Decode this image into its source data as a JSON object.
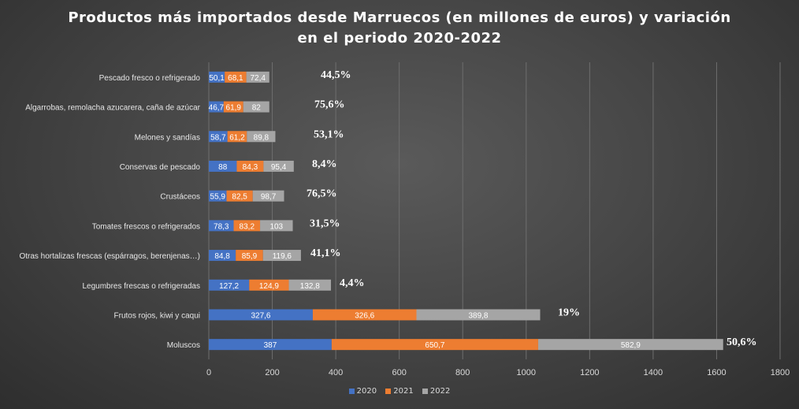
{
  "chart_data": {
    "type": "bar",
    "orientation": "horizontal",
    "stacked": true,
    "title_lines": [
      "Productos más importados desde Marruecos (en millones de euros) y variación",
      "en el periodo 2020-2022"
    ],
    "xlabel": "",
    "ylabel": "",
    "xlim": [
      0,
      1800
    ],
    "xticks": [
      "0",
      "200",
      "400",
      "600",
      "800",
      "1000",
      "1200",
      "1400",
      "1600",
      "1800"
    ],
    "grid": true,
    "legend_position": "bottom",
    "categories": [
      "Pescado fresco o refrigerado",
      "Algarrobas, remolacha azucarera, caña de azúcar",
      "Melones y sandías",
      "Conservas de pescado",
      "Crustáceos",
      "Tomates frescos o refrigerados",
      "Otras hortalizas frescas (espárragos, berenjenas…)",
      "Legumbres frescas o refrigeradas",
      "Frutos rojos, kiwi y caqui",
      "Moluscos"
    ],
    "series": [
      {
        "name": "2020",
        "color": "#4472c4",
        "values": [
          50.1,
          46.7,
          58.7,
          88,
          55.9,
          78.3,
          84.8,
          127.2,
          327.6,
          387
        ],
        "labels": [
          "50,1",
          "46,7",
          "58,7",
          "88",
          "55,9",
          "78,3",
          "84,8",
          "127,2",
          "327,6",
          "387"
        ]
      },
      {
        "name": "2021",
        "color": "#ed7d31",
        "values": [
          68.1,
          61.9,
          61.2,
          84.3,
          82.5,
          83.2,
          85.9,
          124.9,
          326.6,
          650.7
        ],
        "labels": [
          "68,1",
          "61,9",
          "61,2",
          "84,3",
          "82,5",
          "83,2",
          "85,9",
          "124,9",
          "326,6",
          "650,7"
        ]
      },
      {
        "name": "2022",
        "color": "#a5a5a5",
        "values": [
          72.4,
          82,
          89.8,
          95.4,
          98.7,
          103,
          119.6,
          132.8,
          389.8,
          582.9
        ],
        "labels": [
          "72,4",
          "82",
          "89,8",
          "95,4",
          "98,7",
          "103",
          "119,6",
          "132,8",
          "389,8",
          "582,9"
        ]
      }
    ],
    "annotations": [
      "44,5%",
      "75,6%",
      "53,1%",
      "8,4%",
      "76,5%",
      "31,5%",
      "41,1%",
      "4,4%",
      "19%",
      "50,6%"
    ]
  }
}
